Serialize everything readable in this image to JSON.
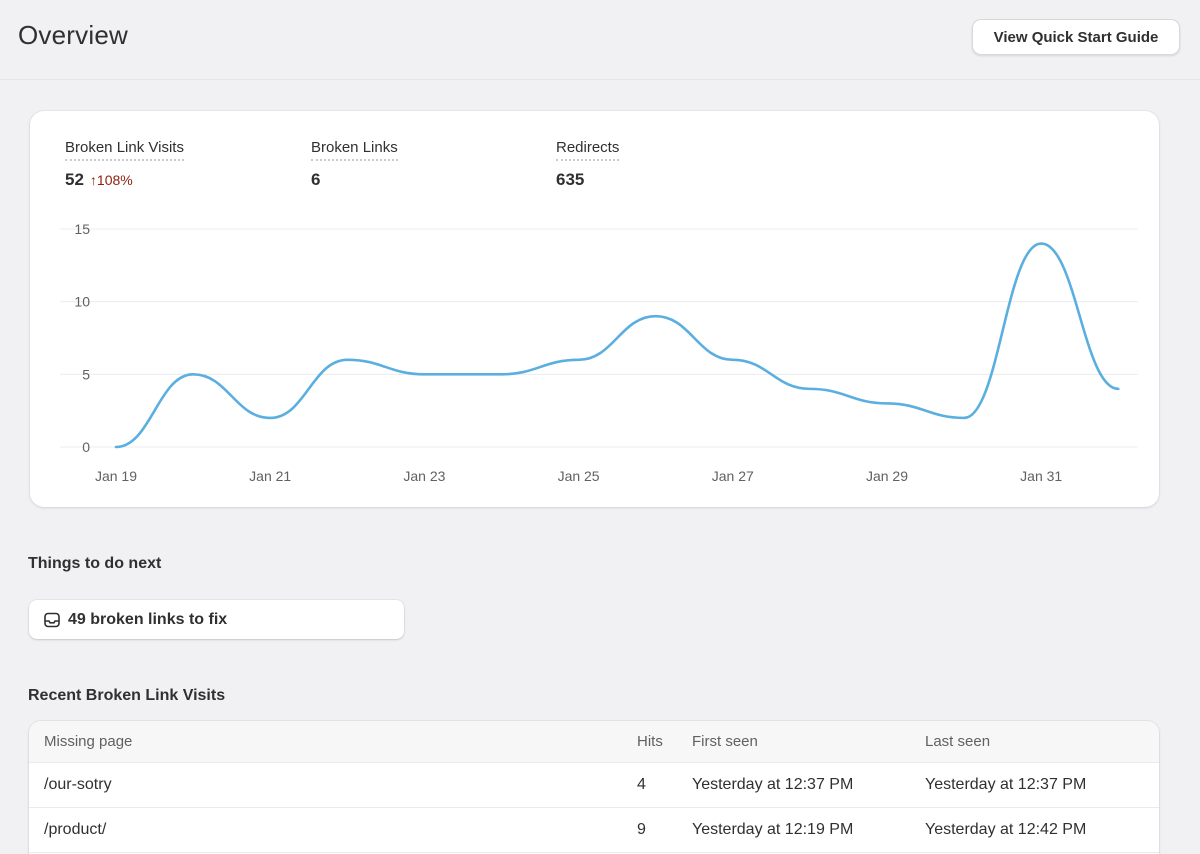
{
  "header": {
    "title": "Overview",
    "quick_start_label": "View Quick Start Guide"
  },
  "metrics": [
    {
      "label": "Broken Link Visits",
      "value": "52",
      "change": "↑108%"
    },
    {
      "label": "Broken Links",
      "value": "6"
    },
    {
      "label": "Redirects",
      "value": "635"
    }
  ],
  "colors": {
    "line": "#5aafe0",
    "change_down": "#8e1f0b"
  },
  "chart_data": {
    "type": "line",
    "title": "",
    "xlabel": "",
    "ylabel": "",
    "x_ticks": [
      "Jan 19",
      "Jan 21",
      "Jan 23",
      "Jan 25",
      "Jan 27",
      "Jan 29",
      "Jan 31"
    ],
    "y_ticks": [
      0,
      5,
      10,
      15
    ],
    "ylim": [
      0,
      15
    ],
    "grid": true,
    "legend": "none",
    "x": [
      "Jan 19",
      "Jan 20",
      "Jan 21",
      "Jan 22",
      "Jan 23",
      "Jan 24",
      "Jan 25",
      "Jan 26",
      "Jan 27",
      "Jan 28",
      "Jan 29",
      "Jan 30",
      "Jan 31",
      "Feb 1"
    ],
    "series": [
      {
        "values": [
          0,
          5,
          2,
          6,
          5,
          5,
          6,
          9,
          6,
          4,
          3,
          2,
          14,
          4
        ]
      }
    ]
  },
  "todo": {
    "section_title": "Things to do next",
    "icon": "inbox-icon",
    "text": "49 broken links to fix"
  },
  "recent": {
    "section_title": "Recent Broken Link Visits",
    "columns": [
      "Missing page",
      "Hits",
      "First seen",
      "Last seen"
    ],
    "rows": [
      {
        "page": "/our-sotry",
        "hits": "4",
        "first": "Yesterday at 12:37 PM",
        "last": "Yesterday at 12:37 PM"
      },
      {
        "page": "/product/",
        "hits": "9",
        "first": "Yesterday at 12:19 PM",
        "last": "Yesterday at 12:42 PM"
      }
    ]
  }
}
